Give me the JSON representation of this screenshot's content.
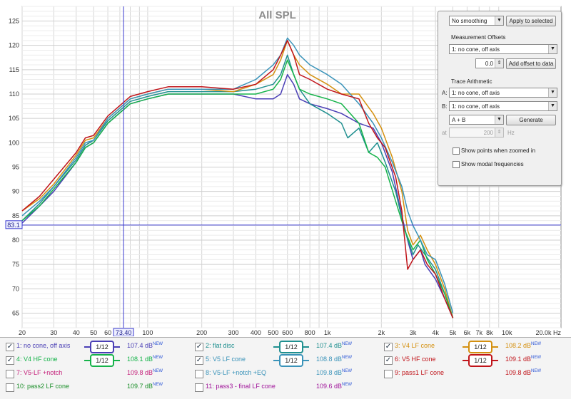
{
  "chart_data": {
    "type": "line",
    "title": "All SPL",
    "xscale": "log",
    "xlim": [
      20,
      20000
    ],
    "ylim": [
      62,
      128
    ],
    "yunit": "dB",
    "xunit": "Hz",
    "xticks": [
      20,
      30,
      40,
      50,
      60,
      100,
      200,
      300,
      400,
      500,
      600,
      800,
      1000,
      2000,
      3000,
      4000,
      5000,
      6000,
      7000,
      8000,
      10000,
      20000
    ],
    "xtick_labels": [
      "20",
      "30",
      "40",
      "50",
      "60",
      "100",
      "200",
      "300",
      "400",
      "500",
      "600",
      "800",
      "1k",
      "2k",
      "3k",
      "4k",
      "5k",
      "6k",
      "7k",
      "8k",
      "10k",
      "20.0k Hz"
    ],
    "yticks": [
      65,
      70,
      75,
      80,
      85,
      90,
      95,
      100,
      105,
      110,
      115,
      120,
      125
    ],
    "cursor": {
      "x": 73.4,
      "y": 83.1,
      "x_label": "73.40",
      "y_label": "83.1"
    },
    "series": [
      {
        "name": "no cone, off axis",
        "color": "#4a3fb5",
        "values": [
          [
            20,
            83.5
          ],
          [
            25,
            87
          ],
          [
            30,
            90
          ],
          [
            40,
            96
          ],
          [
            45,
            99
          ],
          [
            50,
            100
          ],
          [
            60,
            104
          ],
          [
            80,
            108
          ],
          [
            100,
            109
          ],
          [
            130,
            110
          ],
          [
            200,
            110
          ],
          [
            300,
            110
          ],
          [
            400,
            109
          ],
          [
            500,
            109
          ],
          [
            550,
            110
          ],
          [
            600,
            114
          ],
          [
            650,
            112
          ],
          [
            700,
            109
          ],
          [
            800,
            108
          ],
          [
            1000,
            107
          ],
          [
            1200,
            106
          ],
          [
            1500,
            104
          ],
          [
            1800,
            103
          ],
          [
            2000,
            100
          ],
          [
            2300,
            94
          ],
          [
            2600,
            85
          ],
          [
            2800,
            80
          ],
          [
            3000,
            76
          ],
          [
            3300,
            78
          ],
          [
            3500,
            75
          ],
          [
            4000,
            72
          ],
          [
            4500,
            68
          ],
          [
            5000,
            64
          ]
        ]
      },
      {
        "name": "flat disc",
        "color": "#1f8f8f",
        "values": [
          [
            20,
            84
          ],
          [
            25,
            87.5
          ],
          [
            30,
            91
          ],
          [
            40,
            96.5
          ],
          [
            45,
            99.5
          ],
          [
            50,
            100.5
          ],
          [
            60,
            104.5
          ],
          [
            80,
            108.5
          ],
          [
            100,
            109.5
          ],
          [
            130,
            110.5
          ],
          [
            200,
            110.5
          ],
          [
            300,
            110.5
          ],
          [
            400,
            111
          ],
          [
            500,
            112
          ],
          [
            550,
            114
          ],
          [
            600,
            118
          ],
          [
            650,
            114
          ],
          [
            700,
            111
          ],
          [
            800,
            108
          ],
          [
            1000,
            106
          ],
          [
            1200,
            104
          ],
          [
            1300,
            101
          ],
          [
            1500,
            103
          ],
          [
            1700,
            98
          ],
          [
            1900,
            100
          ],
          [
            2100,
            96
          ],
          [
            2400,
            90
          ],
          [
            2700,
            82
          ],
          [
            3000,
            77
          ],
          [
            3200,
            79
          ],
          [
            3500,
            77
          ],
          [
            4000,
            74
          ],
          [
            4500,
            69
          ],
          [
            5000,
            64
          ]
        ]
      },
      {
        "name": "V4 LF cone",
        "color": "#d4900f",
        "values": [
          [
            20,
            86
          ],
          [
            25,
            88.5
          ],
          [
            30,
            91.5
          ],
          [
            40,
            97.5
          ],
          [
            45,
            100.5
          ],
          [
            50,
            101
          ],
          [
            60,
            105
          ],
          [
            80,
            109
          ],
          [
            100,
            110
          ],
          [
            130,
            111
          ],
          [
            200,
            111
          ],
          [
            300,
            110.5
          ],
          [
            400,
            112
          ],
          [
            500,
            114
          ],
          [
            550,
            117
          ],
          [
            600,
            121
          ],
          [
            650,
            118
          ],
          [
            700,
            116
          ],
          [
            800,
            114
          ],
          [
            1000,
            112
          ],
          [
            1200,
            110
          ],
          [
            1500,
            110
          ],
          [
            1800,
            106
          ],
          [
            2000,
            103
          ],
          [
            2300,
            97
          ],
          [
            2600,
            90
          ],
          [
            2800,
            82
          ],
          [
            3000,
            79
          ],
          [
            3300,
            81
          ],
          [
            3600,
            78
          ],
          [
            4000,
            75
          ],
          [
            4500,
            70
          ],
          [
            5000,
            64
          ]
        ]
      },
      {
        "name": "V4 HF cone",
        "color": "#16b34a",
        "values": [
          [
            20,
            84
          ],
          [
            25,
            87
          ],
          [
            30,
            90.5
          ],
          [
            40,
            96
          ],
          [
            45,
            99
          ],
          [
            50,
            100
          ],
          [
            60,
            104
          ],
          [
            80,
            108
          ],
          [
            100,
            109
          ],
          [
            130,
            110
          ],
          [
            200,
            110
          ],
          [
            300,
            110
          ],
          [
            400,
            110
          ],
          [
            500,
            111
          ],
          [
            550,
            113
          ],
          [
            600,
            117
          ],
          [
            650,
            114
          ],
          [
            700,
            111
          ],
          [
            800,
            110
          ],
          [
            1000,
            109
          ],
          [
            1200,
            108
          ],
          [
            1500,
            104
          ],
          [
            1700,
            98
          ],
          [
            1900,
            97
          ],
          [
            2100,
            95
          ],
          [
            2400,
            88
          ],
          [
            2700,
            82
          ],
          [
            3000,
            78
          ],
          [
            3300,
            80
          ],
          [
            3600,
            76
          ],
          [
            4000,
            73
          ],
          [
            4500,
            69
          ],
          [
            5000,
            64
          ]
        ]
      },
      {
        "name": "V5 LF cone",
        "color": "#3a93b9",
        "values": [
          [
            20,
            85
          ],
          [
            25,
            88
          ],
          [
            30,
            91
          ],
          [
            40,
            97
          ],
          [
            45,
            100
          ],
          [
            50,
            100.5
          ],
          [
            60,
            105
          ],
          [
            80,
            109
          ],
          [
            100,
            110
          ],
          [
            130,
            111
          ],
          [
            200,
            111
          ],
          [
            300,
            111
          ],
          [
            400,
            113
          ],
          [
            500,
            116
          ],
          [
            550,
            118
          ],
          [
            600,
            121.5
          ],
          [
            650,
            120
          ],
          [
            700,
            118
          ],
          [
            800,
            116
          ],
          [
            1000,
            114
          ],
          [
            1200,
            112
          ],
          [
            1500,
            108
          ],
          [
            1800,
            104
          ],
          [
            2000,
            101
          ],
          [
            2300,
            96
          ],
          [
            2600,
            91
          ],
          [
            2800,
            86
          ],
          [
            3000,
            83
          ],
          [
            3300,
            80
          ],
          [
            3600,
            77
          ],
          [
            4000,
            76
          ],
          [
            4500,
            71
          ],
          [
            5000,
            65
          ]
        ]
      },
      {
        "name": "V5 HF cone",
        "color": "#c0141a",
        "values": [
          [
            20,
            86
          ],
          [
            25,
            89
          ],
          [
            30,
            92.5
          ],
          [
            40,
            98
          ],
          [
            45,
            101
          ],
          [
            50,
            101.5
          ],
          [
            60,
            105.5
          ],
          [
            80,
            109.5
          ],
          [
            100,
            110.5
          ],
          [
            130,
            111.5
          ],
          [
            200,
            111.5
          ],
          [
            300,
            111
          ],
          [
            400,
            112
          ],
          [
            500,
            115
          ],
          [
            550,
            118
          ],
          [
            600,
            121
          ],
          [
            650,
            118
          ],
          [
            700,
            114
          ],
          [
            800,
            113
          ],
          [
            1000,
            111
          ],
          [
            1200,
            110
          ],
          [
            1500,
            109
          ],
          [
            1700,
            104
          ],
          [
            1900,
            101
          ],
          [
            2100,
            99
          ],
          [
            2400,
            93
          ],
          [
            2600,
            86
          ],
          [
            2800,
            74
          ],
          [
            3000,
            76
          ],
          [
            3300,
            78
          ],
          [
            3600,
            75
          ],
          [
            4000,
            73
          ],
          [
            4500,
            68
          ],
          [
            5000,
            64
          ]
        ]
      }
    ]
  },
  "legend": [
    {
      "checked": true,
      "label": "1: no cone, off axis",
      "smoothing": "1/12",
      "value": "107.4 dB",
      "sup": "NEW",
      "color": "#4a3fb5"
    },
    {
      "checked": true,
      "label": "2: flat disc",
      "smoothing": "1/12",
      "value": "107.4 dB",
      "sup": "NEW",
      "color": "#1f8f8f"
    },
    {
      "checked": true,
      "label": "3: V4 LF cone",
      "smoothing": "1/12",
      "value": "108.2 dB",
      "sup": "NEW",
      "color": "#d4900f"
    },
    {
      "checked": true,
      "label": "4: V4 HF cone",
      "smoothing": "1/12",
      "value": "108.1 dB",
      "sup": "NEW",
      "color": "#16b34a"
    },
    {
      "checked": true,
      "label": "5: V5 LF cone",
      "smoothing": "1/12",
      "value": "108.8 dB",
      "sup": "NEW",
      "color": "#3a93b9"
    },
    {
      "checked": true,
      "label": "6: V5 HF cone",
      "smoothing": "1/12",
      "value": "109.1 dB",
      "sup": "NEW",
      "color": "#c0141a"
    },
    {
      "checked": false,
      "label": "7: V5-LF +notch",
      "value": "109.8 dB",
      "sup": "NEW",
      "color": "#c4207a"
    },
    {
      "checked": false,
      "label": "8: V5-LF +notch +EQ",
      "value": "109.8 dB",
      "sup": "NEW",
      "color": "#3a93b9"
    },
    {
      "checked": false,
      "label": "9: pass1 LF cone",
      "value": "109.8 dB",
      "sup": "NEW",
      "color": "#c0141a"
    },
    {
      "checked": false,
      "label": "10: pass2 LF cone",
      "value": "109.7 dB",
      "sup": "NEW",
      "color": "#1c8f2a"
    },
    {
      "checked": false,
      "label": "11: pass3 - final LF cone",
      "value": "109.6 dB",
      "sup": "NEW",
      "color": "#a0149a"
    }
  ],
  "panel": {
    "smoothing": "No smoothing",
    "apply_button": "Apply to selected",
    "offsets_title": "Measurement Offsets",
    "offset_measurement": "1: no cone, off axis",
    "offset_value": "0.0",
    "add_offset_button": "Add offset to data",
    "arith_title": "Trace Arithmetic",
    "a_label": "A:",
    "a_value": "1: no cone, off axis",
    "b_label": "B:",
    "b_value": "1: no cone, off axis",
    "operation": "A + B",
    "generate_button": "Generate",
    "at_label": "at",
    "at_value": "200",
    "at_unit": "Hz",
    "show_points": "Show points when zoomed in",
    "show_modal": "Show modal frequencies"
  }
}
